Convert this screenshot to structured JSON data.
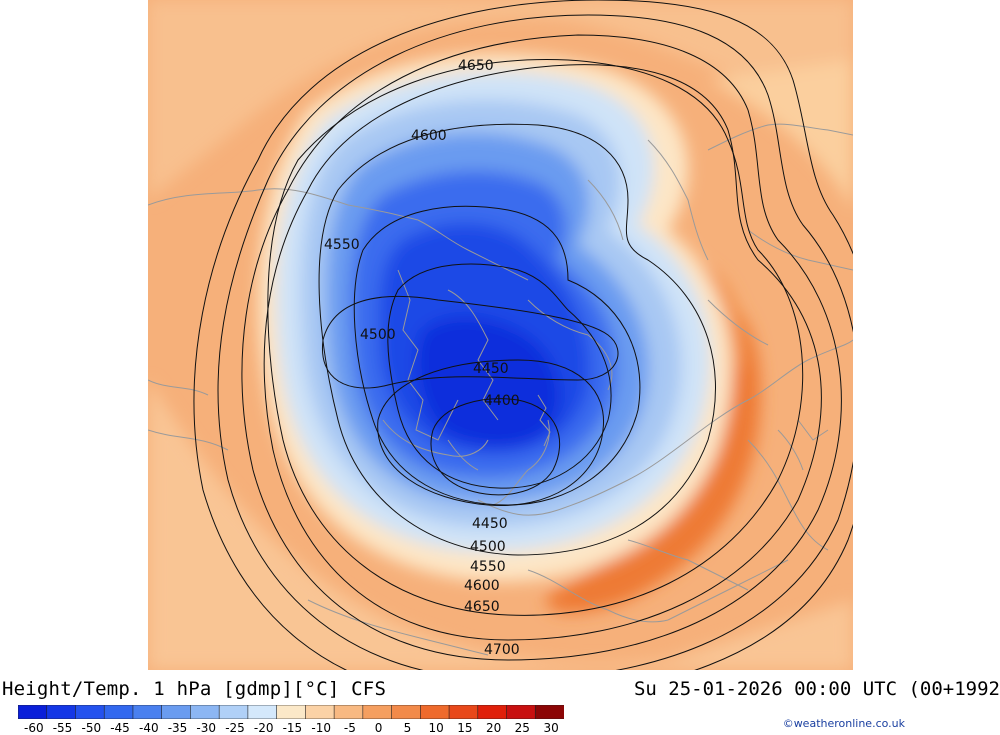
{
  "header": {
    "title": "Height/Temp. 1 hPa [gdmp][°C] CFS",
    "datetime": "Su 25-01-2026 00:00 UTC (00+1992"
  },
  "contour_labels": [
    "4650",
    "4600",
    "4550",
    "4500",
    "4450",
    "4400",
    "4450",
    "4500",
    "4550",
    "4600",
    "4650",
    "4700"
  ],
  "colorbar": {
    "ticks": [
      "-60",
      "-55",
      "-50",
      "-45",
      "-40",
      "-35",
      "-30",
      "-25",
      "-20",
      "-15",
      "-10",
      "-5",
      "0",
      "5",
      "10",
      "15",
      "20",
      "25",
      "30"
    ],
    "colors": [
      "#0a1fd9",
      "#1437e6",
      "#2452ee",
      "#3268ef",
      "#4a80ef",
      "#6a9cf0",
      "#8cb6f3",
      "#b0d0f7",
      "#d4e8fb",
      "#fbe8c8",
      "#fbd2a6",
      "#f8b982",
      "#f59f60",
      "#f28a4a",
      "#ee6a2c",
      "#e8481a",
      "#e0200a",
      "#c81010",
      "#8c0606"
    ]
  },
  "credit": "©weatheronline.co.uk"
}
